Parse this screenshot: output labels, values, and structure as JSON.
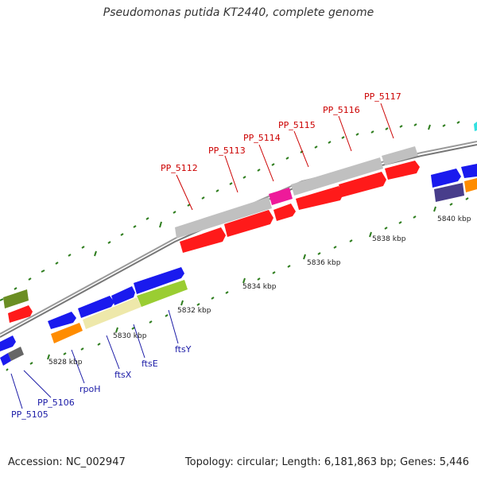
{
  "title": "Pseudomonas putida KT2440, complete genome",
  "footer": {
    "accession": "Accession: NC_002947",
    "summary": "Topology: circular; Length: 6,181,863 bp; Genes: 5,446"
  },
  "colors": {
    "backbone": "#888888",
    "tick": "#2e7d1e",
    "label_red": "#cc0000",
    "label_blue": "#1a1aa6"
  },
  "ticks": [
    "5828 kbp",
    "5830 kbp",
    "5832 kbp",
    "5834 kbp",
    "5836 kbp",
    "5838 kbp",
    "5840 kbp"
  ],
  "labels_red": [
    "PP_5112",
    "PP_5113",
    "PP_5114",
    "PP_5115",
    "PP_5116",
    "PP_5117"
  ],
  "labels_blue": [
    "PP_5105",
    "PP_5106",
    "rpoH",
    "ftsX",
    "ftsE",
    "ftsY"
  ]
}
